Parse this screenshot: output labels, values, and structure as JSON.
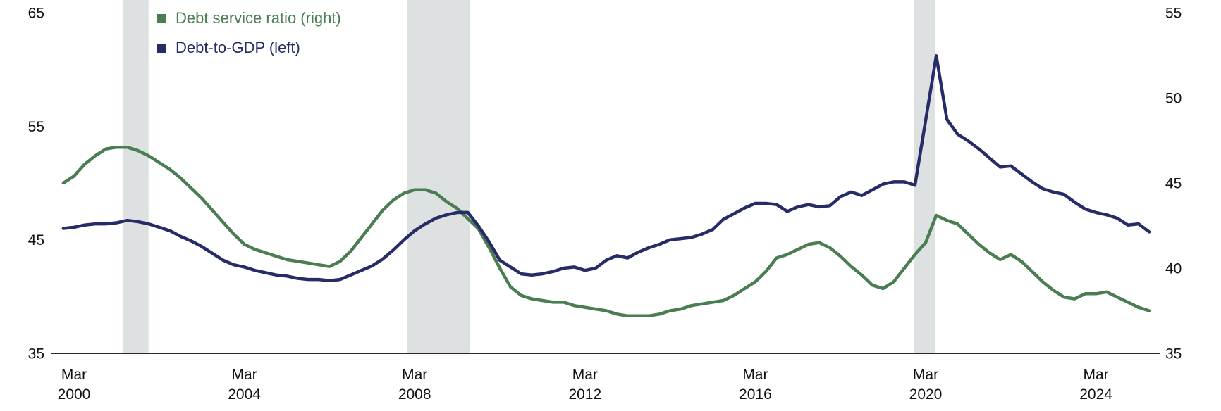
{
  "legend": {
    "items": [
      {
        "label": "Debt service ratio (right)"
      },
      {
        "label": "Debt-to-GDP (left)"
      }
    ]
  },
  "chart_data": {
    "type": "line",
    "title": "",
    "xlabel": "",
    "ylabel_left": "",
    "ylabel_right": "",
    "grid": false,
    "legend_position": "top-left",
    "background_color": "#ffffff",
    "band_color": "#dee1e1",
    "axis_line_color": "#2b2b2b",
    "left_axis": {
      "ticks": [
        "65",
        "55",
        "45",
        "35"
      ],
      "top_value": 65,
      "bottom_value": 35
    },
    "right_axis": {
      "ticks": [
        "55",
        "50",
        "45",
        "40",
        "35"
      ],
      "top_value": 55,
      "bottom_value": 35
    },
    "x_axis": {
      "ticks": [
        {
          "t": 2000.2,
          "month": "Mar",
          "year": "2000"
        },
        {
          "t": 2004.2,
          "month": "Mar",
          "year": "2004"
        },
        {
          "t": 2008.2,
          "month": "Mar",
          "year": "2008"
        },
        {
          "t": 2012.2,
          "month": "Mar",
          "year": "2012"
        },
        {
          "t": 2016.2,
          "month": "Mar",
          "year": "2016"
        },
        {
          "t": 2020.2,
          "month": "Mar",
          "year": "2020"
        },
        {
          "t": 2024.2,
          "month": "Mar",
          "year": "2024"
        }
      ]
    },
    "recession_bands": [
      [
        2001.34,
        2001.95
      ],
      [
        2008.03,
        2009.5
      ],
      [
        2019.93,
        2020.43
      ]
    ],
    "x": [
      1999.95,
      2000.2,
      2000.45,
      2000.7,
      2000.95,
      2001.2,
      2001.45,
      2001.7,
      2001.95,
      2002.2,
      2002.45,
      2002.7,
      2002.95,
      2003.2,
      2003.45,
      2003.7,
      2003.95,
      2004.2,
      2004.45,
      2004.7,
      2004.95,
      2005.2,
      2005.45,
      2005.7,
      2005.95,
      2006.2,
      2006.45,
      2006.7,
      2006.95,
      2007.2,
      2007.45,
      2007.7,
      2007.95,
      2008.2,
      2008.45,
      2008.7,
      2008.95,
      2009.2,
      2009.45,
      2009.7,
      2009.95,
      2010.2,
      2010.45,
      2010.7,
      2010.95,
      2011.2,
      2011.45,
      2011.7,
      2011.95,
      2012.2,
      2012.45,
      2012.7,
      2012.95,
      2013.2,
      2013.45,
      2013.7,
      2013.95,
      2014.2,
      2014.45,
      2014.7,
      2014.95,
      2015.2,
      2015.45,
      2015.7,
      2015.95,
      2016.2,
      2016.45,
      2016.7,
      2016.95,
      2017.2,
      2017.45,
      2017.7,
      2017.95,
      2018.2,
      2018.45,
      2018.7,
      2018.95,
      2019.2,
      2019.45,
      2019.7,
      2019.95,
      2020.2,
      2020.45,
      2020.7,
      2020.95,
      2021.2,
      2021.45,
      2021.7,
      2021.95,
      2022.2,
      2022.45,
      2022.7,
      2022.95,
      2023.2,
      2023.45,
      2023.7,
      2023.95,
      2024.2,
      2024.45,
      2024.7,
      2024.95,
      2025.2,
      2025.45
    ],
    "series": [
      {
        "name": "Debt service ratio (right)",
        "axis": "right",
        "color": "#4b7d53",
        "values": [
          45.0,
          45.4,
          46.1,
          46.6,
          47.0,
          47.1,
          47.1,
          46.9,
          46.6,
          46.2,
          45.8,
          45.3,
          44.7,
          44.1,
          43.4,
          42.7,
          42.0,
          41.4,
          41.1,
          40.9,
          40.7,
          40.5,
          40.4,
          40.3,
          40.2,
          40.1,
          40.4,
          41.0,
          41.8,
          42.6,
          43.4,
          44.0,
          44.4,
          44.6,
          44.6,
          44.4,
          43.9,
          43.5,
          42.9,
          42.3,
          41.2,
          40.0,
          38.9,
          38.4,
          38.2,
          38.1,
          38.0,
          38.0,
          37.8,
          37.7,
          37.6,
          37.5,
          37.3,
          37.2,
          37.2,
          37.2,
          37.3,
          37.5,
          37.6,
          37.8,
          37.9,
          38.0,
          38.1,
          38.4,
          38.8,
          39.2,
          39.8,
          40.6,
          40.8,
          41.1,
          41.4,
          41.5,
          41.2,
          40.7,
          40.1,
          39.6,
          39.0,
          38.8,
          39.2,
          40.0,
          40.8,
          41.5,
          43.1,
          42.8,
          42.6,
          42.0,
          41.4,
          40.9,
          40.5,
          40.8,
          40.4,
          39.8,
          39.2,
          38.7,
          38.3,
          38.2,
          38.5,
          38.5,
          38.6,
          38.3,
          38.0,
          37.7,
          37.5
        ]
      },
      {
        "name": "Debt-to-GDP (left)",
        "axis": "left",
        "color": "#272b66",
        "values": [
          46.0,
          46.1,
          46.3,
          46.4,
          46.4,
          46.5,
          46.7,
          46.6,
          46.4,
          46.1,
          45.8,
          45.3,
          44.9,
          44.4,
          43.8,
          43.2,
          42.8,
          42.6,
          42.3,
          42.1,
          41.9,
          41.8,
          41.6,
          41.5,
          41.5,
          41.4,
          41.5,
          41.9,
          42.3,
          42.7,
          43.3,
          44.1,
          45.0,
          45.8,
          46.4,
          46.9,
          47.2,
          47.4,
          47.4,
          46.2,
          44.8,
          43.2,
          42.6,
          42.0,
          41.9,
          42.0,
          42.2,
          42.5,
          42.6,
          42.3,
          42.5,
          43.2,
          43.6,
          43.4,
          43.9,
          44.3,
          44.6,
          45.0,
          45.1,
          45.2,
          45.5,
          45.9,
          46.8,
          47.3,
          47.8,
          48.2,
          48.2,
          48.1,
          47.5,
          47.9,
          48.1,
          47.9,
          48.0,
          48.8,
          49.2,
          48.9,
          49.4,
          49.9,
          50.1,
          50.1,
          49.8,
          55.5,
          61.2,
          55.6,
          54.3,
          53.7,
          53.0,
          52.2,
          51.4,
          51.5,
          50.8,
          50.1,
          49.5,
          49.2,
          49.0,
          48.3,
          47.7,
          47.4,
          47.2,
          46.9,
          46.3,
          46.4,
          45.7
        ]
      }
    ]
  }
}
